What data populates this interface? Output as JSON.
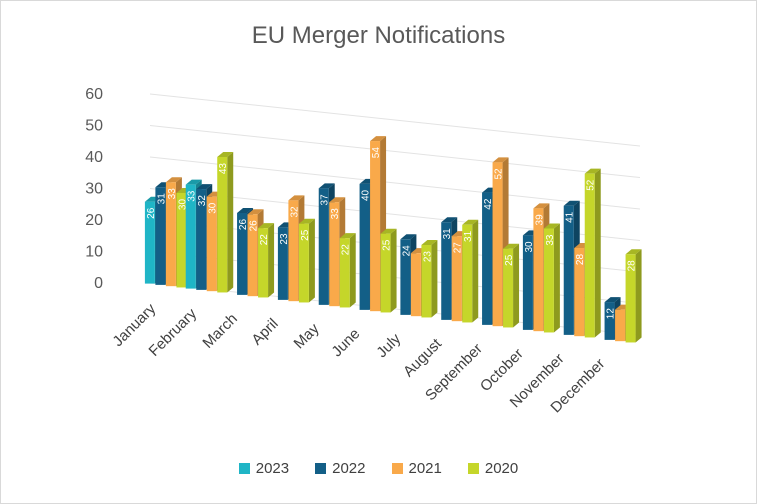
{
  "chart_data": {
    "type": "bar",
    "title": "EU Merger Notifications",
    "categories": [
      "January",
      "February",
      "March",
      "April",
      "May",
      "June",
      "July",
      "August",
      "September",
      "October",
      "November",
      "December"
    ],
    "yticks": [
      0,
      10,
      20,
      30,
      40,
      50,
      60
    ],
    "ylim": [
      0,
      60
    ],
    "legend_position": "bottom",
    "series": [
      {
        "name": "2023",
        "color": "#1fb5c6",
        "values": [
          26,
          33,
          null,
          null,
          null,
          null,
          null,
          null,
          null,
          null,
          null,
          null
        ],
        "labels": [
          "26",
          "33",
          "",
          "",
          "",
          "",
          "",
          "",
          "",
          "",
          "",
          ""
        ]
      },
      {
        "name": "2022",
        "color": "#135f87",
        "values": [
          31,
          32,
          26,
          23,
          37,
          40,
          24,
          31,
          42,
          30,
          41,
          12
        ],
        "labels": [
          "31",
          "32",
          "26",
          "23",
          "37",
          "40",
          "24",
          "31",
          "42",
          "30",
          "41",
          "12"
        ]
      },
      {
        "name": "2021",
        "color": "#f9a94a",
        "values": [
          33,
          30,
          26,
          32,
          33,
          54,
          20,
          27,
          52,
          39,
          28,
          10
        ],
        "labels": [
          "33",
          "30",
          "26",
          "32",
          "33",
          "54",
          "",
          "27",
          "52",
          "39",
          "28",
          ""
        ]
      },
      {
        "name": "2020",
        "color": "#c5d62a",
        "values": [
          30,
          43,
          22,
          25,
          22,
          25,
          23,
          31,
          25,
          33,
          52,
          28
        ],
        "labels": [
          "30",
          "43",
          "22",
          "25",
          "22",
          "25",
          "23",
          "31",
          "25",
          "33",
          "52",
          "28"
        ]
      }
    ]
  }
}
